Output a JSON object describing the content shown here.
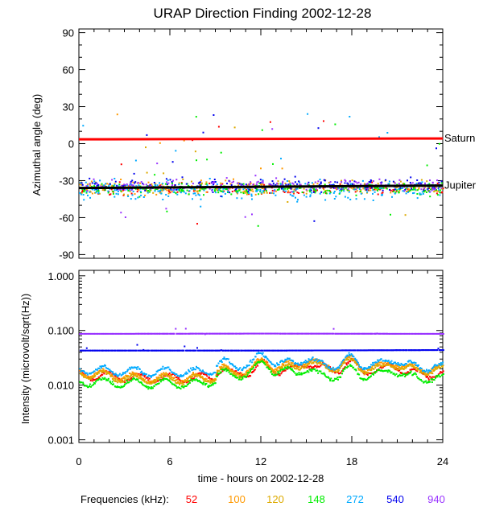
{
  "chart_data": [
    {
      "type": "scatter",
      "title": "URAP Direction Finding  2002-12-28",
      "ylabel": "Azimuthal angle (deg)",
      "xlabel": "",
      "xlim": [
        0,
        24
      ],
      "ylim": [
        -93,
        93
      ],
      "yticks": [
        "90",
        "60",
        "30",
        "0",
        "-30",
        "-60",
        "-90"
      ],
      "reference_lines": [
        {
          "name": "Saturn",
          "color": "#ff0000",
          "y_start": 3.5,
          "y_end": 4.2
        },
        {
          "name": "Jupiter",
          "color": "#000000",
          "y_start": -36,
          "y_end": -34
        }
      ],
      "series": [
        {
          "name": "52",
          "color": "#ff0000",
          "center": -36,
          "spread": 4
        },
        {
          "name": "100",
          "color": "#ff9900",
          "center": -35,
          "spread": 5
        },
        {
          "name": "120",
          "color": "#ddaa00",
          "center": -35,
          "spread": 5
        },
        {
          "name": "148",
          "color": "#00ee00",
          "center": -36,
          "spread": 4
        },
        {
          "name": "272",
          "color": "#00aaff",
          "center": -37,
          "spread": 7
        },
        {
          "name": "540",
          "color": "#0000ee",
          "center": -33,
          "spread": 6
        },
        {
          "name": "940",
          "color": "#9933ff",
          "center": -33,
          "spread": 5
        }
      ]
    },
    {
      "type": "scatter",
      "title": "",
      "ylabel": "Intensity (microvolt/sqrt(Hz))",
      "xlabel": "time - hours on 2002-12-28",
      "xlim": [
        0,
        24
      ],
      "ylim_log10": [
        -3.05,
        0.1
      ],
      "yscale": "log",
      "yticks": [
        {
          "value": 1.0,
          "label": "1.000"
        },
        {
          "value": 0.1,
          "label": "0.100"
        },
        {
          "value": 0.01,
          "label": "0.010"
        },
        {
          "value": 0.001,
          "label": "0.001"
        }
      ],
      "xticks": [
        "0",
        "6",
        "12",
        "18",
        "24"
      ],
      "series": [
        {
          "name": "52",
          "color": "#ff0000",
          "levels": [
            [
              0,
              0.016
            ],
            [
              4,
              0.014
            ],
            [
              8,
              0.014
            ],
            [
              12,
              0.019
            ],
            [
              16,
              0.021
            ],
            [
              20,
              0.019
            ],
            [
              24,
              0.016
            ]
          ]
        },
        {
          "name": "100",
          "color": "#ff9900",
          "levels": [
            [
              0,
              0.018
            ],
            [
              4,
              0.014
            ],
            [
              8,
              0.014
            ],
            [
              12,
              0.022
            ],
            [
              16,
              0.024
            ],
            [
              20,
              0.022
            ],
            [
              24,
              0.02
            ]
          ]
        },
        {
          "name": "120",
          "color": "#ddaa00",
          "levels": [
            [
              0,
              0.017
            ],
            [
              4,
              0.013
            ],
            [
              8,
              0.013
            ],
            [
              12,
              0.02
            ],
            [
              16,
              0.022
            ],
            [
              20,
              0.02
            ],
            [
              24,
              0.019
            ]
          ]
        },
        {
          "name": "148",
          "color": "#00ee00",
          "levels": [
            [
              0,
              0.012
            ],
            [
              4,
              0.011
            ],
            [
              8,
              0.011
            ],
            [
              12,
              0.02
            ],
            [
              16,
              0.015
            ],
            [
              20,
              0.016
            ],
            [
              24,
              0.013
            ]
          ]
        },
        {
          "name": "272",
          "color": "#00aaff",
          "levels": [
            [
              0,
              0.02
            ],
            [
              4,
              0.018
            ],
            [
              8,
              0.018
            ],
            [
              12,
              0.028
            ],
            [
              16,
              0.024
            ],
            [
              20,
              0.025
            ],
            [
              24,
              0.021
            ]
          ]
        },
        {
          "name": "540",
          "color": "#0000ee",
          "levels": [
            [
              0,
              0.043
            ],
            [
              12,
              0.043
            ],
            [
              24,
              0.044
            ]
          ]
        },
        {
          "name": "940",
          "color": "#9933ff",
          "levels": [
            [
              0,
              0.087
            ],
            [
              12,
              0.088
            ],
            [
              24,
              0.087
            ]
          ]
        }
      ]
    }
  ],
  "legend": {
    "label": "Frequencies (kHz):",
    "items": [
      {
        "text": "52",
        "color": "#ff0000"
      },
      {
        "text": "100",
        "color": "#ff9900"
      },
      {
        "text": "120",
        "color": "#ddaa00"
      },
      {
        "text": "148",
        "color": "#00ee00"
      },
      {
        "text": "272",
        "color": "#00aaff"
      },
      {
        "text": "540",
        "color": "#0000ee"
      },
      {
        "text": "940",
        "color": "#9933ff"
      }
    ]
  }
}
